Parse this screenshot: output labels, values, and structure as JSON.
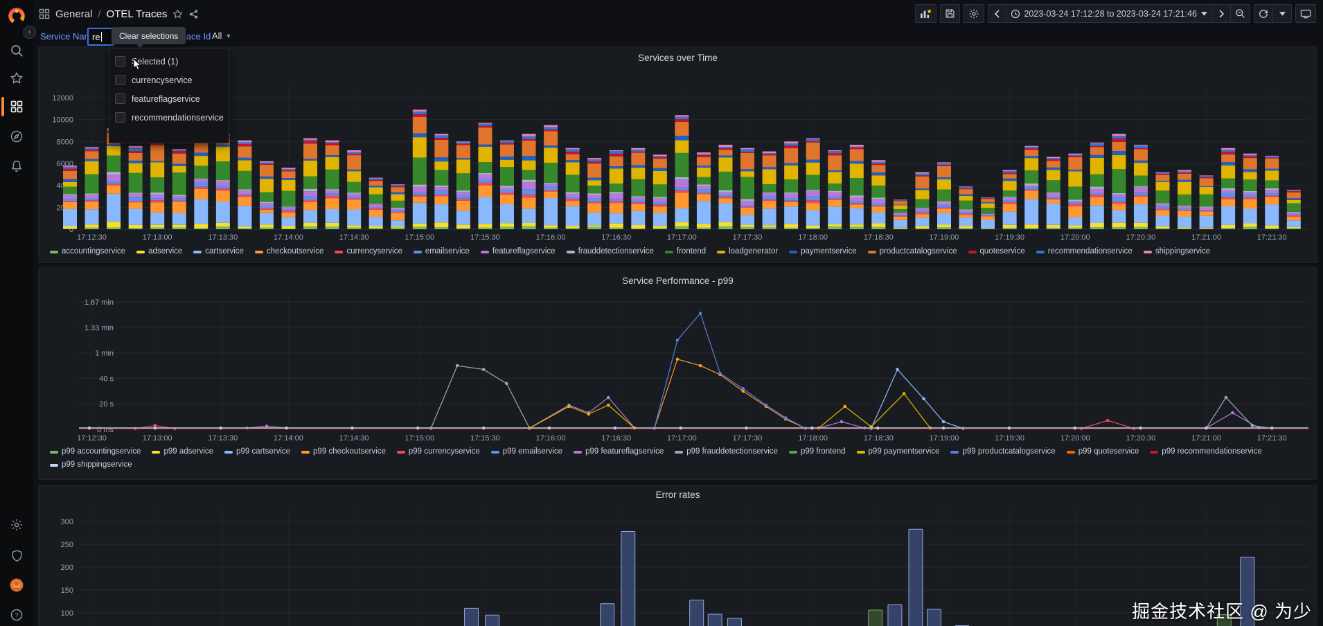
{
  "app": {
    "breadcrumb_section": "General",
    "breadcrumb_separator": "/",
    "breadcrumb_page": "OTEL Traces",
    "time_range": "2023-03-24 17:12:28 to 2023-03-24 17:21:46",
    "watermark": "掘金技术社区 @ 为少"
  },
  "filter_bar": {
    "service_name_label": "Service Name",
    "service_name_value": "re",
    "clear_selections_label": "Clear selections",
    "trace_id_label": "Trace Id",
    "trace_id_value": "All",
    "service_dropdown_options": [
      "Selected (1)",
      "currencyservice",
      "featureflagservice",
      "recommendationservice"
    ]
  },
  "chart_data": [
    {
      "type": "bar",
      "stacked": true,
      "title": "Services over Time",
      "ylim": [
        0,
        12000
      ],
      "y_ticks": [
        0,
        2000,
        4000,
        6000,
        8000,
        10000,
        12000
      ],
      "x_ticks": [
        "17:12:30",
        "17:13:00",
        "17:13:30",
        "17:14:00",
        "17:14:30",
        "17:15:00",
        "17:15:30",
        "17:16:00",
        "17:16:30",
        "17:17:00",
        "17:17:30",
        "17:18:00",
        "17:18:30",
        "17:19:00",
        "17:19:30",
        "17:20:00",
        "17:20:30",
        "17:21:00",
        "17:21:30"
      ],
      "bar_interval_seconds": 10,
      "series": [
        {
          "name": "accountingservice",
          "color": "#73BF69",
          "frac": 0.02
        },
        {
          "name": "adservice",
          "color": "#FADE2A",
          "frac": 0.03
        },
        {
          "name": "cartservice",
          "color": "#8AB8FF",
          "frac": 0.2
        },
        {
          "name": "checkoutservice",
          "color": "#FF9830",
          "frac": 0.09
        },
        {
          "name": "currencyservice",
          "color": "#F2495C",
          "frac": 0.02
        },
        {
          "name": "emailservice",
          "color": "#5794F2",
          "frac": 0.03
        },
        {
          "name": "featureflagservice",
          "color": "#B877D9",
          "frac": 0.04
        },
        {
          "name": "frauddetectionservice",
          "color": "#A9B6C6",
          "frac": 0.015
        },
        {
          "name": "frontend",
          "color": "#37872D",
          "frac": 0.16
        },
        {
          "name": "loadgenerator",
          "color": "#E0B400",
          "frac": 0.13
        },
        {
          "name": "paymentservice",
          "color": "#1F60C4",
          "frac": 0.025
        },
        {
          "name": "productcatalogservice",
          "color": "#E0752D",
          "frac": 0.12
        },
        {
          "name": "quoteservice",
          "color": "#C4162A",
          "frac": 0.02
        },
        {
          "name": "recommendationservice",
          "color": "#3274D9",
          "frac": 0.02
        },
        {
          "name": "shippingservice",
          "color": "#E685B5",
          "frac": 0.015
        }
      ],
      "totals": [
        5800,
        7500,
        9200,
        7600,
        8100,
        7300,
        9000,
        8700,
        8100,
        6200,
        5600,
        8300,
        8100,
        7200,
        4700,
        4100,
        10900,
        8700,
        8000,
        9700,
        8100,
        8700,
        9500,
        7400,
        6500,
        7200,
        7400,
        6800,
        10400,
        7000,
        7700,
        7400,
        7100,
        8000,
        8300,
        7200,
        7700,
        6300,
        2700,
        5200,
        6100,
        3900,
        2900,
        5400,
        7600,
        6600,
        6900,
        7900,
        8700,
        7700,
        5200,
        5400,
        4900,
        7400,
        6900,
        6700,
        3600
      ]
    },
    {
      "type": "line",
      "title": "Service Performance - p99",
      "y_ticks": [
        {
          "label": "0 ms",
          "s": 0
        },
        {
          "label": "20 s",
          "s": 20
        },
        {
          "label": "40 s",
          "s": 40
        },
        {
          "label": "1 min",
          "s": 60
        },
        {
          "label": "1.33 min",
          "s": 80
        },
        {
          "label": "1.67 min",
          "s": 100
        }
      ],
      "x_ticks": [
        "17:12:30",
        "17:13:00",
        "17:13:30",
        "17:14:00",
        "17:14:30",
        "17:15:00",
        "17:15:30",
        "17:16:00",
        "17:16:30",
        "17:17:00",
        "17:17:30",
        "17:18:00",
        "17:18:30",
        "17:19:00",
        "17:19:30",
        "17:20:00",
        "17:20:30",
        "17:21:00",
        "17:21:30"
      ],
      "series": [
        {
          "name": "p99 accountingservice",
          "color": "#73BF69",
          "points": [
            [
              0,
              0.6
            ],
            [
              18,
              0.6
            ]
          ]
        },
        {
          "name": "p99 adservice",
          "color": "#FADE2A",
          "points": [
            [
              0,
              0.9
            ],
            [
              18,
              0.9
            ]
          ]
        },
        {
          "name": "p99 cartservice",
          "color": "#8AB8FF",
          "points": [
            [
              0,
              0.7
            ],
            [
              11.9,
              0.7
            ],
            [
              12.3,
              47
            ],
            [
              12.7,
              24
            ],
            [
              13,
              6
            ],
            [
              13.3,
              0.7
            ],
            [
              18,
              0.7
            ]
          ]
        },
        {
          "name": "p99 checkoutservice",
          "color": "#FF9830",
          "points": [
            [
              0,
              0.8
            ],
            [
              8.6,
              0.8
            ],
            [
              8.95,
              55
            ],
            [
              9.3,
              50
            ],
            [
              9.6,
              43
            ],
            [
              9.95,
              30
            ],
            [
              10.3,
              18
            ],
            [
              10.6,
              8
            ],
            [
              10.9,
              0.8
            ],
            [
              18,
              0.8
            ]
          ]
        },
        {
          "name": "p99 currencyservice",
          "color": "#F2495C",
          "points": [
            [
              0,
              0.6
            ],
            [
              0.7,
              0.6
            ],
            [
              1,
              3
            ],
            [
              1.3,
              0.6
            ],
            [
              15.1,
              0.6
            ],
            [
              15.5,
              7
            ],
            [
              15.9,
              0.6
            ],
            [
              18,
              0.6
            ]
          ]
        },
        {
          "name": "p99 emailservice",
          "color": "#5794F2",
          "points": [
            [
              0,
              1
            ],
            [
              18,
              1
            ]
          ]
        },
        {
          "name": "p99 featureflagservice",
          "color": "#B877D9",
          "points": [
            [
              0,
              1
            ],
            [
              2.4,
              1
            ],
            [
              2.7,
              2.5
            ],
            [
              3,
              1
            ],
            [
              6.7,
              1
            ],
            [
              7.3,
              19
            ],
            [
              7.6,
              13
            ],
            [
              7.9,
              25
            ],
            [
              8.3,
              1
            ],
            [
              11.1,
              1
            ],
            [
              11.45,
              6
            ],
            [
              11.8,
              1
            ],
            [
              17,
              1
            ],
            [
              17.4,
              13
            ],
            [
              17.8,
              1
            ],
            [
              18,
              1
            ]
          ]
        },
        {
          "name": "p99 frauddetectionservice",
          "color": "#9FA7B3",
          "points": [
            [
              0,
              0.8
            ],
            [
              5.2,
              0.8
            ],
            [
              5.6,
              50
            ],
            [
              6,
              47
            ],
            [
              6.35,
              36
            ],
            [
              6.7,
              0.8
            ],
            [
              17,
              0.8
            ],
            [
              17.3,
              25
            ],
            [
              17.7,
              3
            ],
            [
              18,
              0.8
            ]
          ]
        },
        {
          "name": "p99 frontend",
          "color": "#56A64B",
          "points": [
            [
              0,
              1.2
            ],
            [
              18,
              1.2
            ]
          ]
        },
        {
          "name": "p99 paymentservice",
          "color": "#E0B400",
          "points": [
            [
              0,
              0.9
            ],
            [
              6.7,
              0.9
            ],
            [
              7.3,
              18
            ],
            [
              7.6,
              12
            ],
            [
              7.9,
              19
            ],
            [
              8.3,
              0.9
            ],
            [
              11.1,
              0.9
            ],
            [
              11.5,
              18
            ],
            [
              11.9,
              2
            ],
            [
              12.4,
              28
            ],
            [
              12.8,
              0.9
            ],
            [
              18,
              0.9
            ]
          ]
        },
        {
          "name": "p99 productcatalogservice",
          "color": "#5B7BD9",
          "points": [
            [
              0,
              0.8
            ],
            [
              8.6,
              0.8
            ],
            [
              8.95,
              70
            ],
            [
              9.3,
              91
            ],
            [
              9.6,
              44
            ],
            [
              9.95,
              32
            ],
            [
              10.3,
              19
            ],
            [
              10.6,
              9
            ],
            [
              10.9,
              0.8
            ],
            [
              18,
              0.8
            ]
          ]
        },
        {
          "name": "p99 quoteservice",
          "color": "#FA6400",
          "points": [
            [
              0,
              0.7
            ],
            [
              18,
              0.7
            ]
          ]
        },
        {
          "name": "p99 recommendationservice",
          "color": "#C4162A",
          "points": [
            [
              0,
              0.5
            ],
            [
              18,
              0.5
            ]
          ]
        },
        {
          "name": "p99 shippingservice",
          "color": "#C0D8FF",
          "points": [
            [
              0,
              1
            ],
            [
              18,
              1
            ]
          ]
        }
      ]
    },
    {
      "type": "bar",
      "title": "Error rates",
      "y_ticks": [
        100,
        150,
        200,
        250,
        300
      ],
      "bar_fill": "#3D4E7A",
      "bar_stroke": "#94A8E0",
      "alt_fill": "#39522F",
      "alt_stroke": "#79A86F",
      "bars": [
        {
          "x": 0.328,
          "v": 110
        },
        {
          "x": 0.345,
          "v": 95
        },
        {
          "x": 0.439,
          "v": 120
        },
        {
          "x": 0.456,
          "v": 278
        },
        {
          "x": 0.512,
          "v": 128
        },
        {
          "x": 0.527,
          "v": 97
        },
        {
          "x": 0.543,
          "v": 88
        },
        {
          "x": 0.658,
          "v": 106,
          "alt": true
        },
        {
          "x": 0.674,
          "v": 118
        },
        {
          "x": 0.691,
          "v": 283
        },
        {
          "x": 0.706,
          "v": 108
        },
        {
          "x": 0.729,
          "v": 72
        },
        {
          "x": 0.943,
          "v": 96,
          "alt": true
        },
        {
          "x": 0.962,
          "v": 222
        }
      ]
    }
  ]
}
